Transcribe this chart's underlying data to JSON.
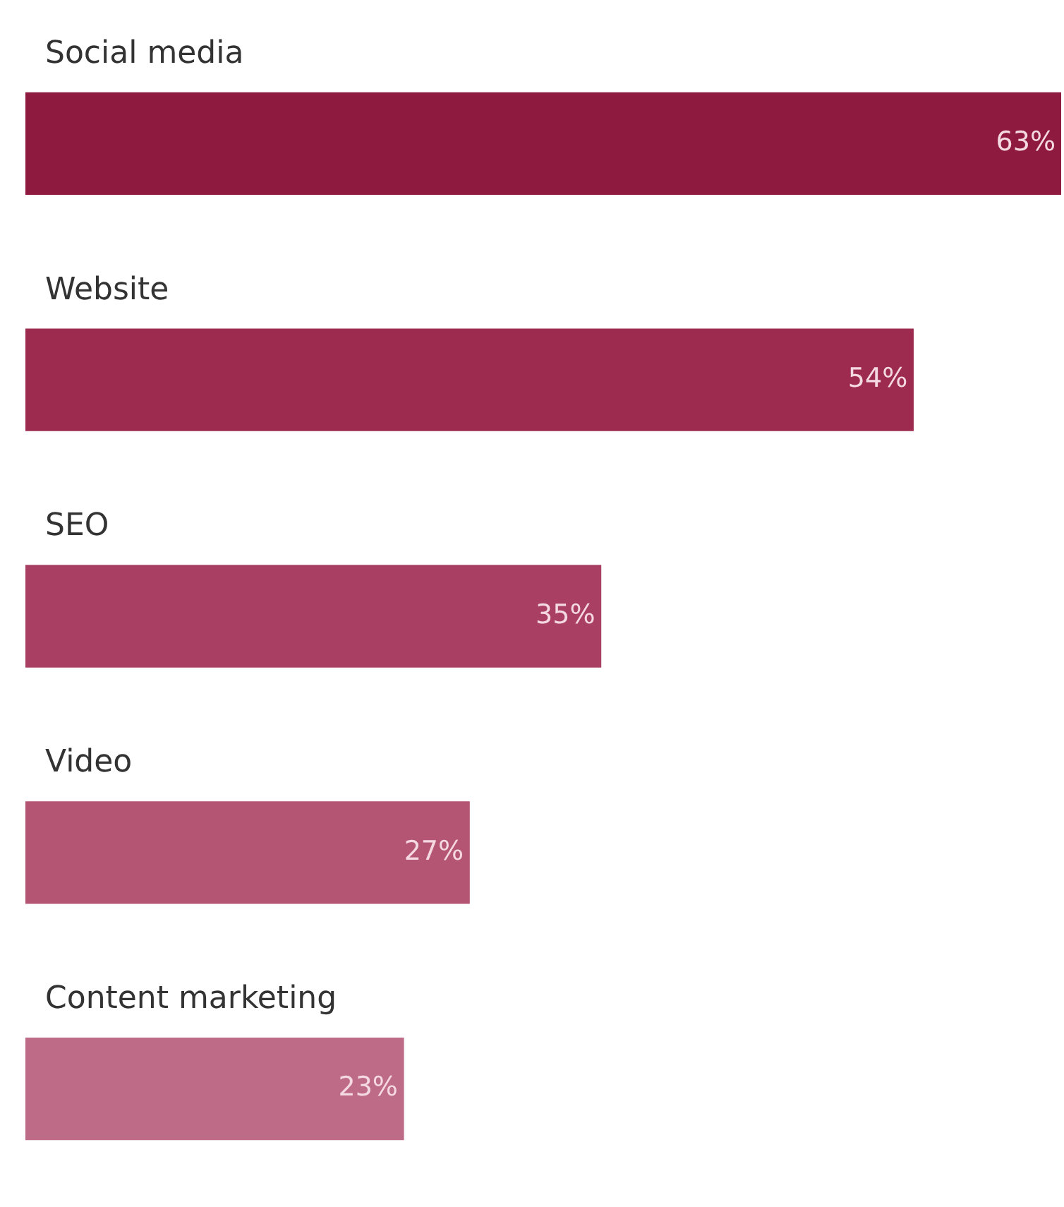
{
  "chart_data": {
    "type": "bar",
    "orientation": "horizontal",
    "categories": [
      "Social media",
      "Website",
      "SEO",
      "Video",
      "Content marketing"
    ],
    "values": [
      63,
      54,
      35,
      27,
      23
    ],
    "colors": [
      "#8e1a3f",
      "#9c2b4f",
      "#a93f63",
      "#b45574",
      "#bd6b87"
    ],
    "value_labels": [
      "63%",
      "54%",
      "35%",
      "27%",
      "23%"
    ]
  }
}
